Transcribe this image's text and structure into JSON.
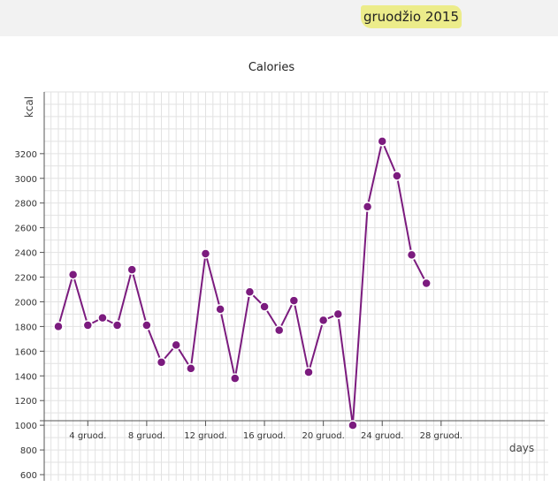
{
  "header": {
    "month": "gruodžio 2015"
  },
  "chart_data": {
    "type": "line",
    "title": "Calories",
    "xlabel": "days",
    "ylabel": "kcal",
    "ylim": [
      550,
      3700
    ],
    "xlim": [
      2,
      36
    ],
    "grid": true,
    "color": "#7b1b7e",
    "y_ticks": [
      600,
      800,
      1000,
      1200,
      1400,
      1600,
      1800,
      2000,
      2200,
      2400,
      2600,
      2800,
      3000,
      3200
    ],
    "x_ticks": [
      {
        "day": 4,
        "label": "4 gruod."
      },
      {
        "day": 8,
        "label": "8 gruod."
      },
      {
        "day": 12,
        "label": "12 gruod."
      },
      {
        "day": 16,
        "label": "16 gruod."
      },
      {
        "day": 20,
        "label": "20 gruod."
      },
      {
        "day": 24,
        "label": "24 gruod."
      },
      {
        "day": 28,
        "label": "28 gruod."
      }
    ],
    "x": [
      2,
      3,
      4,
      5,
      6,
      7,
      8,
      9,
      10,
      11,
      12,
      13,
      14,
      15,
      16,
      17,
      18,
      19,
      20,
      21,
      22,
      23,
      24,
      25,
      26,
      27
    ],
    "values": [
      1800,
      2220,
      1810,
      1870,
      1810,
      2260,
      1810,
      1510,
      1650,
      1460,
      2390,
      1940,
      1380,
      2080,
      1960,
      1770,
      2010,
      1430,
      1850,
      1900,
      1000,
      2770,
      3300,
      3020,
      2380,
      2150
    ]
  }
}
